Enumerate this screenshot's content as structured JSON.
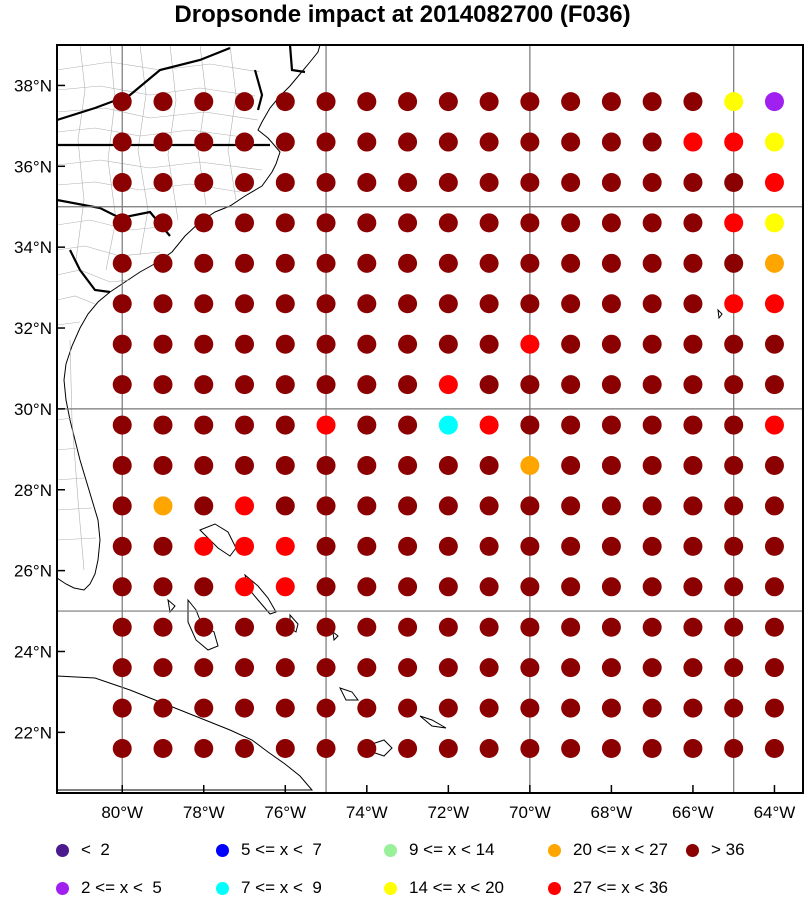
{
  "title": "Dropsonde impact at 2014082700 (F036)",
  "map": {
    "lon_range": [
      -81.6,
      -63.3
    ],
    "lat_range": [
      20.5,
      39.0
    ],
    "lon_ticks": [
      "80°W",
      "78°W",
      "76°W",
      "74°W",
      "72°W",
      "70°W",
      "68°W",
      "66°W",
      "64°W"
    ],
    "lat_ticks": [
      "22°N",
      "24°N",
      "26°N",
      "28°N",
      "30°N",
      "32°N",
      "34°N",
      "36°N",
      "38°N"
    ]
  },
  "legend": [
    {
      "label": "<  2",
      "color": "#4b1a8f"
    },
    {
      "label": "5 <= x <  7",
      "color": "#0000ff"
    },
    {
      "label": "9 <= x < 14",
      "color": "#98f098"
    },
    {
      "label": "20 <= x < 27",
      "color": "#ffa500"
    },
    {
      "label": "> 36",
      "color": "#8b0000"
    },
    {
      "label": "2 <= x <  5",
      "color": "#a020f0"
    },
    {
      "label": "7 <= x <  9",
      "color": "#00ffff"
    },
    {
      "label": "14 <= x < 20",
      "color": "#ffff00"
    },
    {
      "label": "27 <= x < 36",
      "color": "#ff0000"
    }
  ],
  "chart_data": {
    "type": "scatter",
    "grid": {
      "lons": [
        -80,
        -79,
        -78,
        -77,
        -76,
        -75,
        -74,
        -73,
        -72,
        -71,
        -70,
        -69,
        -68,
        -67,
        -66,
        -65,
        -64
      ],
      "lats": [
        37.6,
        36.6,
        35.6,
        34.6,
        33.6,
        32.6,
        31.6,
        30.6,
        29.6,
        28.6,
        27.6,
        26.6,
        25.6,
        24.6,
        23.6,
        22.6,
        21.6
      ]
    },
    "class_colors": {
      "D": "#8b0000",
      "R": "#ff0000",
      "O": "#ffa500",
      "Y": "#ffff00",
      "P": "#a020f0",
      "C": "#00ffff"
    },
    "rows": [
      "DDDDDDDDDDDDDDDYP",
      "DDDDDDDDDDDDDDRRY",
      "DDDDDDDDDDDDDDDDR",
      "DDDDDDDDDDDDDDDRY",
      "DDDDDDDDDDDDDDDDO",
      "DDDDDDDDDDDDDDDRR",
      "DDDDDDDDDDRDDDDDD",
      "DDDDDDDDRDDDDDDDD",
      "DDDDDRDDCRDDDDDDR",
      "DDDDDDDDDDODDDDDD",
      "DODRDDDDDDDDDDDDD",
      "DDRRRDDDDDDDDDDDD",
      "DDDRRDDDDDDDDDDDD",
      "DDDDDDDDDDDDDDDDD",
      "DDDDDDDDDDDDDDDDD",
      "DDDDDDDDDDDDDDDDD",
      "DDDDDDDDDDDDDDDDD"
    ],
    "xlabel": "",
    "ylabel": ""
  }
}
